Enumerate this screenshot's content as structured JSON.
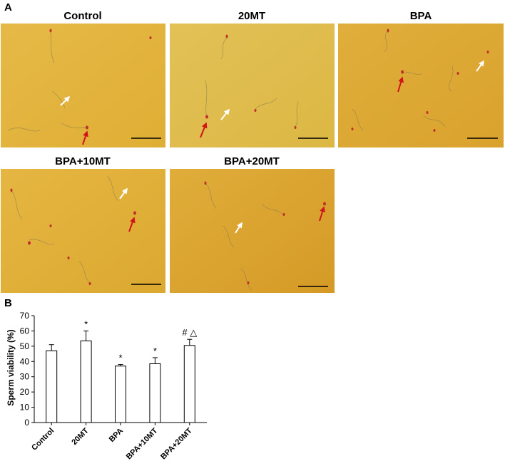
{
  "panel_a": {
    "label": "A",
    "images": [
      {
        "title": "Control"
      },
      {
        "title": "20MT"
      },
      {
        "title": "BPA"
      },
      {
        "title": "BPA+10MT"
      },
      {
        "title": "BPA+20MT"
      }
    ]
  },
  "panel_b": {
    "label": "B"
  },
  "colors": {
    "background_yellow": "#e3b43a",
    "sperm_head": "#c0302a",
    "red_arrow": "#d0141a",
    "white_arrow": "#ffffff",
    "scale_bar": "#000000"
  },
  "chart_data": {
    "type": "bar",
    "categories": [
      "Control",
      "20MT",
      "BPA",
      "BPA+10MT",
      "BPA+20MT"
    ],
    "values": [
      47,
      53.5,
      37,
      38.5,
      50.5
    ],
    "errors": [
      4,
      6.5,
      1,
      4,
      4
    ],
    "annotations": [
      "",
      "*",
      "*",
      "*",
      "# △"
    ],
    "ylabel": "Sperm viability (%)",
    "ylim": [
      0,
      70
    ],
    "yticks": [
      0,
      10,
      20,
      30,
      40,
      50,
      60,
      70
    ],
    "grid": false,
    "legend": "none"
  }
}
